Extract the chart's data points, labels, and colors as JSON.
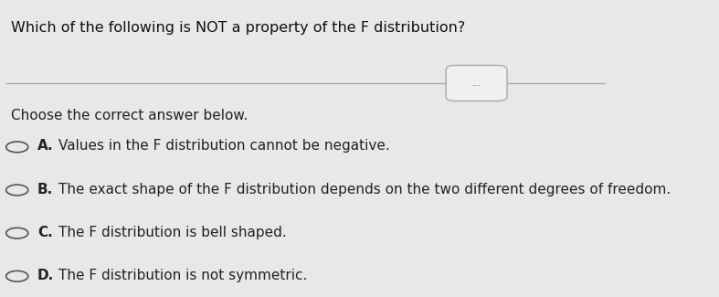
{
  "title": "Which of the following is NOT a property of the F distribution?",
  "subtitle": "Choose the correct answer below.",
  "options": [
    {
      "label": "A.",
      "text": "Values in the F distribution cannot be negative."
    },
    {
      "label": "B.",
      "text": "The exact shape of the F distribution depends on the two different degrees of freedom."
    },
    {
      "label": "C.",
      "text": "The F distribution is bell shaped."
    },
    {
      "label": "D.",
      "text": "The F distribution is not symmetric."
    }
  ],
  "bg_color": "#e8e8e8",
  "text_color": "#222222",
  "title_color": "#111111",
  "divider_color": "#aaaaaa",
  "bubble_text": "...",
  "bubble_color": "#f0f0f0",
  "bubble_border": "#aaaaaa"
}
